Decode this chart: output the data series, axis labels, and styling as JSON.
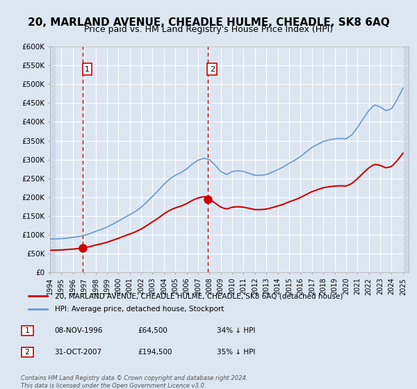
{
  "title": "20, MARLAND AVENUE, CHEADLE HULME, CHEADLE, SK8 6AQ",
  "subtitle": "Price paid vs. HM Land Registry's House Price Index (HPI)",
  "title_fontsize": 11,
  "subtitle_fontsize": 9,
  "background_color": "#dce6f1",
  "plot_bg_color": "#dce6f1",
  "hatch_color": "#c0cfe0",
  "grid_color": "#ffffff",
  "ylim": [
    0,
    600000
  ],
  "yticks": [
    0,
    50000,
    100000,
    150000,
    200000,
    250000,
    300000,
    350000,
    400000,
    450000,
    500000,
    550000,
    600000
  ],
  "ytick_labels": [
    "£0",
    "£50K",
    "£100K",
    "£150K",
    "£200K",
    "£250K",
    "£300K",
    "£350K",
    "£400K",
    "£450K",
    "£500K",
    "£550K",
    "£600K"
  ],
  "xlim_start": 1994,
  "xlim_end": 2025.5,
  "xticks": [
    1994,
    1995,
    1996,
    1997,
    1998,
    1999,
    2000,
    2001,
    2002,
    2003,
    2004,
    2005,
    2006,
    2007,
    2008,
    2009,
    2010,
    2011,
    2012,
    2013,
    2014,
    2015,
    2016,
    2017,
    2018,
    2019,
    2020,
    2021,
    2022,
    2023,
    2024,
    2025
  ],
  "sale1_x": 1996.86,
  "sale1_y": 64500,
  "sale2_x": 2007.83,
  "sale2_y": 194500,
  "sale_color": "#cc0000",
  "hpi_color": "#6699cc",
  "legend_label_red": "20, MARLAND AVENUE, CHEADLE HULME, CHEADLE, SK8 6AQ (detached house)",
  "legend_label_blue": "HPI: Average price, detached house, Stockport",
  "note1_label": "1",
  "note2_label": "2",
  "note1_date": "08-NOV-1996",
  "note1_price": "£64,500",
  "note1_hpi": "34% ↓ HPI",
  "note2_date": "31-OCT-2007",
  "note2_price": "£194,500",
  "note2_hpi": "35% ↓ HPI",
  "footer": "Contains HM Land Registry data © Crown copyright and database right 2024.\nThis data is licensed under the Open Government Licence v3.0."
}
